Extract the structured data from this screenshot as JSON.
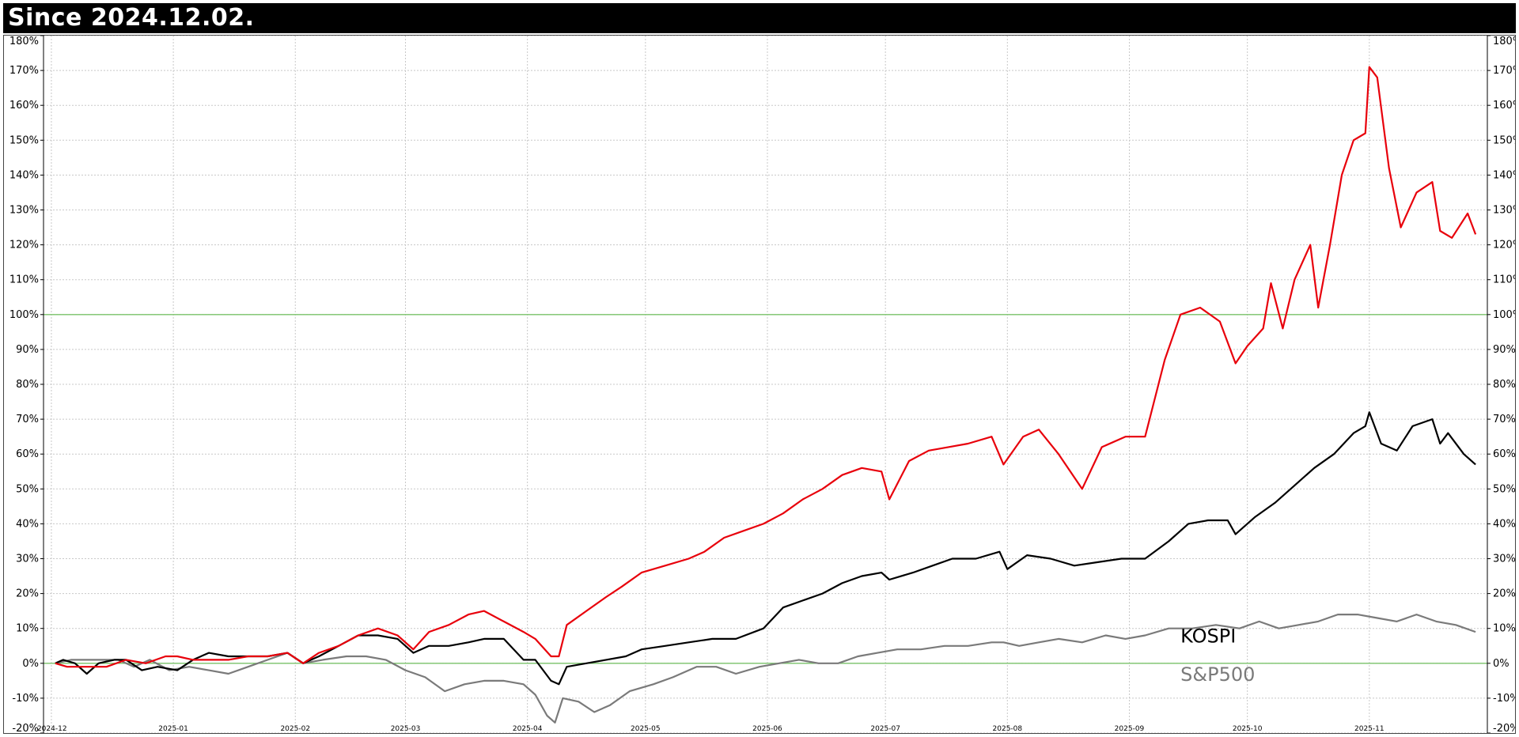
{
  "header": {
    "title": "Since  2024.12.02."
  },
  "chart_data": {
    "type": "line",
    "title": "Since  2024.12.02.",
    "xlabel": "",
    "ylabel": "",
    "x_ticks": [
      "2024-12",
      "2025-01",
      "2025-02",
      "2025-03",
      "2025-04",
      "2025-05",
      "2025-06",
      "2025-07",
      "2025-08",
      "2025-09",
      "2025-10",
      "2025-11"
    ],
    "y_ticks": [
      "-20%",
      "-10%",
      "0%",
      "10%",
      "20%",
      "30%",
      "40%",
      "50%",
      "60%",
      "70%",
      "80%",
      "90%",
      "100%",
      "110%",
      "120%",
      "130%",
      "140%",
      "150%",
      "160%",
      "170%",
      "180%"
    ],
    "ylim": [
      -20,
      180
    ],
    "grid": true,
    "y_axis_both_sides": true,
    "reference_lines": [
      {
        "y": 0,
        "color": "#7ac36a"
      },
      {
        "y": 100,
        "color": "#7ac36a"
      }
    ],
    "series": [
      {
        "name": "",
        "color": "#e8000b",
        "points": [
          [
            "2024-12-02",
            0
          ],
          [
            "2024-12-05",
            -1
          ],
          [
            "2024-12-10",
            -1
          ],
          [
            "2024-12-15",
            -1
          ],
          [
            "2024-12-20",
            1
          ],
          [
            "2024-12-25",
            0
          ],
          [
            "2024-12-30",
            2
          ],
          [
            "2025-01-02",
            2
          ],
          [
            "2025-01-06",
            1
          ],
          [
            "2025-01-10",
            1
          ],
          [
            "2025-01-15",
            1
          ],
          [
            "2025-01-20",
            2
          ],
          [
            "2025-01-25",
            2
          ],
          [
            "2025-01-30",
            3
          ],
          [
            "2025-02-03",
            0
          ],
          [
            "2025-02-07",
            3
          ],
          [
            "2025-02-12",
            5
          ],
          [
            "2025-02-17",
            8
          ],
          [
            "2025-02-22",
            10
          ],
          [
            "2025-02-27",
            8
          ],
          [
            "2025-03-03",
            4
          ],
          [
            "2025-03-07",
            9
          ],
          [
            "2025-03-12",
            11
          ],
          [
            "2025-03-17",
            14
          ],
          [
            "2025-03-21",
            15
          ],
          [
            "2025-03-26",
            12
          ],
          [
            "2025-03-31",
            9
          ],
          [
            "2025-04-03",
            7
          ],
          [
            "2025-04-07",
            2
          ],
          [
            "2025-04-09",
            2
          ],
          [
            "2025-04-11",
            11
          ],
          [
            "2025-04-16",
            15
          ],
          [
            "2025-04-21",
            19
          ],
          [
            "2025-04-25",
            22
          ],
          [
            "2025-04-30",
            26
          ],
          [
            "2025-05-06",
            28
          ],
          [
            "2025-05-12",
            30
          ],
          [
            "2025-05-16",
            32
          ],
          [
            "2025-05-21",
            36
          ],
          [
            "2025-05-26",
            38
          ],
          [
            "2025-05-31",
            40
          ],
          [
            "2025-06-05",
            43
          ],
          [
            "2025-06-10",
            47
          ],
          [
            "2025-06-15",
            50
          ],
          [
            "2025-06-20",
            54
          ],
          [
            "2025-06-25",
            56
          ],
          [
            "2025-06-30",
            55
          ],
          [
            "2025-07-02",
            47
          ],
          [
            "2025-07-07",
            58
          ],
          [
            "2025-07-12",
            61
          ],
          [
            "2025-07-17",
            62
          ],
          [
            "2025-07-22",
            63
          ],
          [
            "2025-07-28",
            65
          ],
          [
            "2025-07-31",
            57
          ],
          [
            "2025-08-05",
            65
          ],
          [
            "2025-08-09",
            67
          ],
          [
            "2025-08-14",
            60
          ],
          [
            "2025-08-20",
            50
          ],
          [
            "2025-08-25",
            62
          ],
          [
            "2025-08-31",
            65
          ],
          [
            "2025-09-05",
            65
          ],
          [
            "2025-09-10",
            87
          ],
          [
            "2025-09-14",
            100
          ],
          [
            "2025-09-19",
            102
          ],
          [
            "2025-09-24",
            98
          ],
          [
            "2025-09-28",
            86
          ],
          [
            "2025-10-01",
            91
          ],
          [
            "2025-10-05",
            96
          ],
          [
            "2025-10-07",
            109
          ],
          [
            "2025-10-10",
            96
          ],
          [
            "2025-10-13",
            110
          ],
          [
            "2025-10-17",
            120
          ],
          [
            "2025-10-19",
            102
          ],
          [
            "2025-10-22",
            120
          ],
          [
            "2025-10-25",
            140
          ],
          [
            "2025-10-28",
            150
          ],
          [
            "2025-10-31",
            152
          ],
          [
            "2025-11-01",
            171
          ],
          [
            "2025-11-03",
            168
          ],
          [
            "2025-11-06",
            142
          ],
          [
            "2025-11-09",
            125
          ],
          [
            "2025-11-13",
            135
          ],
          [
            "2025-11-17",
            138
          ],
          [
            "2025-11-19",
            124
          ],
          [
            "2025-11-22",
            122
          ],
          [
            "2025-11-26",
            129
          ],
          [
            "2025-11-28",
            123
          ]
        ]
      },
      {
        "name": "KOSPI",
        "color": "#000000",
        "points": [
          [
            "2024-12-02",
            0
          ],
          [
            "2024-12-04",
            1
          ],
          [
            "2024-12-07",
            0
          ],
          [
            "2024-12-10",
            -3
          ],
          [
            "2024-12-13",
            0
          ],
          [
            "2024-12-17",
            1
          ],
          [
            "2024-12-20",
            1
          ],
          [
            "2024-12-24",
            -2
          ],
          [
            "2024-12-28",
            -1
          ],
          [
            "2025-01-02",
            -2
          ],
          [
            "2025-01-06",
            1
          ],
          [
            "2025-01-10",
            3
          ],
          [
            "2025-01-15",
            2
          ],
          [
            "2025-01-20",
            2
          ],
          [
            "2025-01-25",
            2
          ],
          [
            "2025-01-30",
            3
          ],
          [
            "2025-02-03",
            0
          ],
          [
            "2025-02-07",
            2
          ],
          [
            "2025-02-12",
            5
          ],
          [
            "2025-02-17",
            8
          ],
          [
            "2025-02-22",
            8
          ],
          [
            "2025-02-27",
            7
          ],
          [
            "2025-03-03",
            3
          ],
          [
            "2025-03-07",
            5
          ],
          [
            "2025-03-12",
            5
          ],
          [
            "2025-03-17",
            6
          ],
          [
            "2025-03-21",
            7
          ],
          [
            "2025-03-26",
            7
          ],
          [
            "2025-03-31",
            1
          ],
          [
            "2025-04-03",
            1
          ],
          [
            "2025-04-07",
            -5
          ],
          [
            "2025-04-09",
            -6
          ],
          [
            "2025-04-11",
            -1
          ],
          [
            "2025-04-16",
            0
          ],
          [
            "2025-04-21",
            1
          ],
          [
            "2025-04-26",
            2
          ],
          [
            "2025-04-30",
            4
          ],
          [
            "2025-05-06",
            5
          ],
          [
            "2025-05-12",
            6
          ],
          [
            "2025-05-18",
            7
          ],
          [
            "2025-05-24",
            7
          ],
          [
            "2025-05-31",
            10
          ],
          [
            "2025-06-05",
            16
          ],
          [
            "2025-06-10",
            18
          ],
          [
            "2025-06-15",
            20
          ],
          [
            "2025-06-20",
            23
          ],
          [
            "2025-06-25",
            25
          ],
          [
            "2025-06-30",
            26
          ],
          [
            "2025-07-02",
            24
          ],
          [
            "2025-07-08",
            26
          ],
          [
            "2025-07-13",
            28
          ],
          [
            "2025-07-18",
            30
          ],
          [
            "2025-07-24",
            30
          ],
          [
            "2025-07-30",
            32
          ],
          [
            "2025-08-01",
            27
          ],
          [
            "2025-08-06",
            31
          ],
          [
            "2025-08-12",
            30
          ],
          [
            "2025-08-18",
            28
          ],
          [
            "2025-08-24",
            29
          ],
          [
            "2025-08-30",
            30
          ],
          [
            "2025-09-05",
            30
          ],
          [
            "2025-09-11",
            35
          ],
          [
            "2025-09-16",
            40
          ],
          [
            "2025-09-21",
            41
          ],
          [
            "2025-09-26",
            41
          ],
          [
            "2025-09-28",
            37
          ],
          [
            "2025-10-03",
            42
          ],
          [
            "2025-10-08",
            46
          ],
          [
            "2025-10-13",
            51
          ],
          [
            "2025-10-18",
            56
          ],
          [
            "2025-10-23",
            60
          ],
          [
            "2025-10-28",
            66
          ],
          [
            "2025-10-31",
            68
          ],
          [
            "2025-11-01",
            72
          ],
          [
            "2025-11-04",
            63
          ],
          [
            "2025-11-08",
            61
          ],
          [
            "2025-11-12",
            68
          ],
          [
            "2025-11-17",
            70
          ],
          [
            "2025-11-19",
            63
          ],
          [
            "2025-11-21",
            66
          ],
          [
            "2025-11-25",
            60
          ],
          [
            "2025-11-28",
            57
          ]
        ]
      },
      {
        "name": "S&P500",
        "color": "#7a7a7a",
        "points": [
          [
            "2024-12-02",
            0
          ],
          [
            "2024-12-06",
            1
          ],
          [
            "2024-12-12",
            1
          ],
          [
            "2024-12-18",
            1
          ],
          [
            "2024-12-22",
            -1
          ],
          [
            "2024-12-26",
            1
          ],
          [
            "2024-12-31",
            -2
          ],
          [
            "2025-01-05",
            -1
          ],
          [
            "2025-01-10",
            -2
          ],
          [
            "2025-01-15",
            -3
          ],
          [
            "2025-01-20",
            -1
          ],
          [
            "2025-01-25",
            1
          ],
          [
            "2025-01-30",
            3
          ],
          [
            "2025-02-03",
            0
          ],
          [
            "2025-02-08",
            1
          ],
          [
            "2025-02-14",
            2
          ],
          [
            "2025-02-19",
            2
          ],
          [
            "2025-02-24",
            1
          ],
          [
            "2025-03-01",
            -2
          ],
          [
            "2025-03-06",
            -4
          ],
          [
            "2025-03-11",
            -8
          ],
          [
            "2025-03-16",
            -6
          ],
          [
            "2025-03-21",
            -5
          ],
          [
            "2025-03-26",
            -5
          ],
          [
            "2025-03-31",
            -6
          ],
          [
            "2025-04-03",
            -9
          ],
          [
            "2025-04-06",
            -15
          ],
          [
            "2025-04-08",
            -17
          ],
          [
            "2025-04-10",
            -10
          ],
          [
            "2025-04-14",
            -11
          ],
          [
            "2025-04-18",
            -14
          ],
          [
            "2025-04-22",
            -12
          ],
          [
            "2025-04-27",
            -8
          ],
          [
            "2025-05-03",
            -6
          ],
          [
            "2025-05-08",
            -4
          ],
          [
            "2025-05-14",
            -1
          ],
          [
            "2025-05-19",
            -1
          ],
          [
            "2025-05-24",
            -3
          ],
          [
            "2025-05-30",
            -1
          ],
          [
            "2025-06-04",
            0
          ],
          [
            "2025-06-09",
            1
          ],
          [
            "2025-06-14",
            0
          ],
          [
            "2025-06-19",
            0
          ],
          [
            "2025-06-24",
            2
          ],
          [
            "2025-06-29",
            3
          ],
          [
            "2025-07-04",
            4
          ],
          [
            "2025-07-10",
            4
          ],
          [
            "2025-07-16",
            5
          ],
          [
            "2025-07-22",
            5
          ],
          [
            "2025-07-28",
            6
          ],
          [
            "2025-07-31",
            6
          ],
          [
            "2025-08-04",
            5
          ],
          [
            "2025-08-09",
            6
          ],
          [
            "2025-08-14",
            7
          ],
          [
            "2025-08-20",
            6
          ],
          [
            "2025-08-26",
            8
          ],
          [
            "2025-08-31",
            7
          ],
          [
            "2025-09-05",
            8
          ],
          [
            "2025-09-11",
            10
          ],
          [
            "2025-09-17",
            10
          ],
          [
            "2025-09-23",
            11
          ],
          [
            "2025-09-29",
            10
          ],
          [
            "2025-10-04",
            12
          ],
          [
            "2025-10-09",
            10
          ],
          [
            "2025-10-14",
            11
          ],
          [
            "2025-10-19",
            12
          ],
          [
            "2025-10-24",
            14
          ],
          [
            "2025-10-29",
            14
          ],
          [
            "2025-11-03",
            13
          ],
          [
            "2025-11-08",
            12
          ],
          [
            "2025-11-13",
            14
          ],
          [
            "2025-11-18",
            12
          ],
          [
            "2025-11-23",
            11
          ],
          [
            "2025-11-28",
            9
          ]
        ]
      }
    ],
    "annotations": [
      {
        "series": "KOSPI",
        "text": "KOSPI",
        "color": "#000000"
      },
      {
        "series": "S&P500",
        "text": "S&P500",
        "color": "#7a7a7a"
      }
    ]
  }
}
